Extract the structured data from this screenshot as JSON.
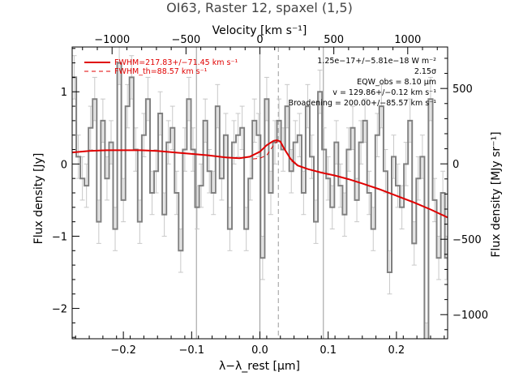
{
  "chart_data": {
    "type": "line",
    "title": "OI63, Raster 12, spaxel (1,5)",
    "xlabel": "λ−λ_rest [μm]",
    "ylabel": "Flux density [Jy]",
    "x2label": "Velocity [km s⁻¹]",
    "y2label": "Flux density [MJy sr⁻¹]",
    "xlim": [
      -0.275,
      0.275
    ],
    "ylim": [
      -2.42,
      1.62
    ],
    "vlim": [
      -1270,
      1270
    ],
    "y2lim": [
      -1160,
      775
    ],
    "xticks": [
      -0.2,
      -0.1,
      0.0,
      0.1,
      0.2
    ],
    "xtick_labels": [
      "−0.2",
      "−0.1",
      "0.0",
      "0.1",
      "0.2"
    ],
    "yticks": [
      -2,
      -1,
      0,
      1
    ],
    "ytick_labels": [
      "−2",
      "−1",
      "0",
      "1"
    ],
    "vticks": [
      -1000,
      -500,
      0,
      500,
      1000
    ],
    "vtick_labels": [
      "−1000",
      "−500",
      "0",
      "500",
      "1000"
    ],
    "y2ticks": [
      -1000,
      -500,
      0,
      500
    ],
    "y2tick_labels": [
      "−1000",
      "−500",
      "0",
      "500"
    ],
    "ref_lines_x": [
      -0.093,
      0.0,
      0.093
    ],
    "line_center_x": 0.027,
    "grid": false,
    "legend": [
      {
        "label": "FWHM=217.83+/−71.45 km s⁻¹",
        "style": "solid",
        "color": "#e00000"
      },
      {
        "label": "FWHM_th=88.57 km s⁻¹",
        "style": "dashed",
        "color": "#e00000"
      }
    ],
    "annotations": [
      "1.25e−17+/−5.81e−18 W m⁻²",
      "2.15σ",
      "EQW_obs = 8.10 μm",
      "v = 129.86+/−0.12 km s⁻¹",
      "Broadening = 200.00+/−85.57 km s⁻¹"
    ],
    "series": [
      {
        "style": "steps-with-errorbars",
        "color": "#888888",
        "x": [
          -0.272,
          -0.266,
          -0.26,
          -0.254,
          -0.248,
          -0.242,
          -0.236,
          -0.23,
          -0.224,
          -0.218,
          -0.212,
          -0.206,
          -0.2,
          -0.194,
          -0.188,
          -0.182,
          -0.176,
          -0.17,
          -0.164,
          -0.158,
          -0.152,
          -0.146,
          -0.14,
          -0.134,
          -0.128,
          -0.122,
          -0.116,
          -0.11,
          -0.104,
          -0.098,
          -0.092,
          -0.086,
          -0.08,
          -0.074,
          -0.068,
          -0.062,
          -0.056,
          -0.05,
          -0.044,
          -0.038,
          -0.032,
          -0.026,
          -0.02,
          -0.014,
          -0.008,
          -0.002,
          0.004,
          0.01,
          0.016,
          0.022,
          0.028,
          0.034,
          0.04,
          0.046,
          0.052,
          0.058,
          0.064,
          0.07,
          0.076,
          0.082,
          0.088,
          0.094,
          0.1,
          0.106,
          0.112,
          0.118,
          0.124,
          0.13,
          0.136,
          0.142,
          0.148,
          0.154,
          0.16,
          0.166,
          0.172,
          0.178,
          0.184,
          0.19,
          0.196,
          0.202,
          0.208,
          0.214,
          0.22,
          0.226,
          0.232,
          0.238,
          0.244,
          0.25,
          0.256,
          0.262,
          0.268,
          0.274
        ],
        "values": [
          1.2,
          0.1,
          -0.2,
          -0.3,
          0.5,
          0.9,
          -0.8,
          0.6,
          -0.2,
          0.3,
          -0.9,
          1.4,
          -0.5,
          0.8,
          1.2,
          0.2,
          -0.8,
          0.4,
          0.9,
          -0.4,
          -0.1,
          0.7,
          -0.7,
          0.3,
          0.5,
          -0.4,
          -1.2,
          0.2,
          0.9,
          0.2,
          -0.6,
          -0.3,
          0.6,
          -0.1,
          -0.4,
          0.8,
          -0.2,
          0.4,
          -0.9,
          0.3,
          0.4,
          0.5,
          -0.9,
          -0.2,
          0.6,
          0.4,
          -1.3,
          0.9,
          -0.4,
          0.3,
          0.6,
          0.2,
          0.8,
          -0.1,
          0.3,
          0.4,
          -0.4,
          0.8,
          0.1,
          -0.8,
          1.0,
          0.2,
          -0.2,
          -0.6,
          0.3,
          -0.3,
          -0.7,
          0.2,
          0.5,
          -0.5,
          0.3,
          0.6,
          -0.4,
          -0.9,
          0.4,
          0.8,
          -0.1,
          -1.5,
          0.1,
          -0.3,
          -0.6,
          0.0,
          0.6,
          -1.1,
          -0.2,
          0.1,
          -2.5,
          0.9,
          -0.5,
          -1.3,
          -0.4,
          -1.3
        ],
        "errors": [
          0.3,
          0.3,
          0.3,
          0.3,
          0.3,
          0.3,
          0.3,
          0.3,
          0.3,
          0.3,
          0.3,
          0.3,
          0.3,
          0.3,
          0.3,
          0.3,
          0.3,
          0.3,
          0.3,
          0.3,
          0.3,
          0.3,
          0.3,
          0.3,
          0.3,
          0.3,
          0.3,
          0.3,
          0.3,
          0.3,
          0.3,
          0.3,
          0.3,
          0.3,
          0.3,
          0.3,
          0.3,
          0.3,
          0.3,
          0.3,
          0.3,
          0.3,
          0.3,
          0.3,
          0.3,
          0.3,
          0.3,
          0.3,
          0.3,
          0.3,
          0.3,
          0.3,
          0.3,
          0.3,
          0.3,
          0.3,
          0.3,
          0.3,
          0.3,
          0.3,
          0.3,
          0.3,
          0.3,
          0.3,
          0.3,
          0.3,
          0.3,
          0.3,
          0.3,
          0.3,
          0.3,
          0.3,
          0.3,
          0.3,
          0.3,
          0.3,
          0.3,
          0.3,
          0.3,
          0.3,
          0.3,
          0.3,
          0.3,
          0.3,
          0.3,
          0.3,
          0.3,
          0.3,
          0.3,
          0.3,
          0.3,
          0.3
        ]
      },
      {
        "style": "fit-total",
        "color": "#e00000",
        "x": [
          -0.275,
          -0.25,
          -0.225,
          -0.2,
          -0.175,
          -0.15,
          -0.125,
          -0.1,
          -0.075,
          -0.05,
          -0.03,
          -0.015,
          0.0,
          0.01,
          0.02,
          0.025,
          0.03,
          0.035,
          0.045,
          0.055,
          0.07,
          0.09,
          0.11,
          0.13,
          0.15,
          0.175,
          0.2,
          0.225,
          0.25,
          0.275
        ],
        "values": [
          0.16,
          0.18,
          0.19,
          0.19,
          0.19,
          0.18,
          0.16,
          0.14,
          0.12,
          0.09,
          0.08,
          0.1,
          0.17,
          0.26,
          0.32,
          0.33,
          0.31,
          0.22,
          0.07,
          -0.02,
          -0.07,
          -0.12,
          -0.16,
          -0.21,
          -0.27,
          -0.35,
          -0.44,
          -0.53,
          -0.63,
          -0.74
        ]
      },
      {
        "style": "fit-component-dashed",
        "color": "#e00000",
        "x": [
          -0.01,
          0.0,
          0.01,
          0.02,
          0.027,
          0.035,
          0.045,
          0.055
        ],
        "values": [
          0.07,
          0.08,
          0.12,
          0.26,
          0.33,
          0.24,
          0.05,
          -0.02
        ]
      }
    ]
  }
}
